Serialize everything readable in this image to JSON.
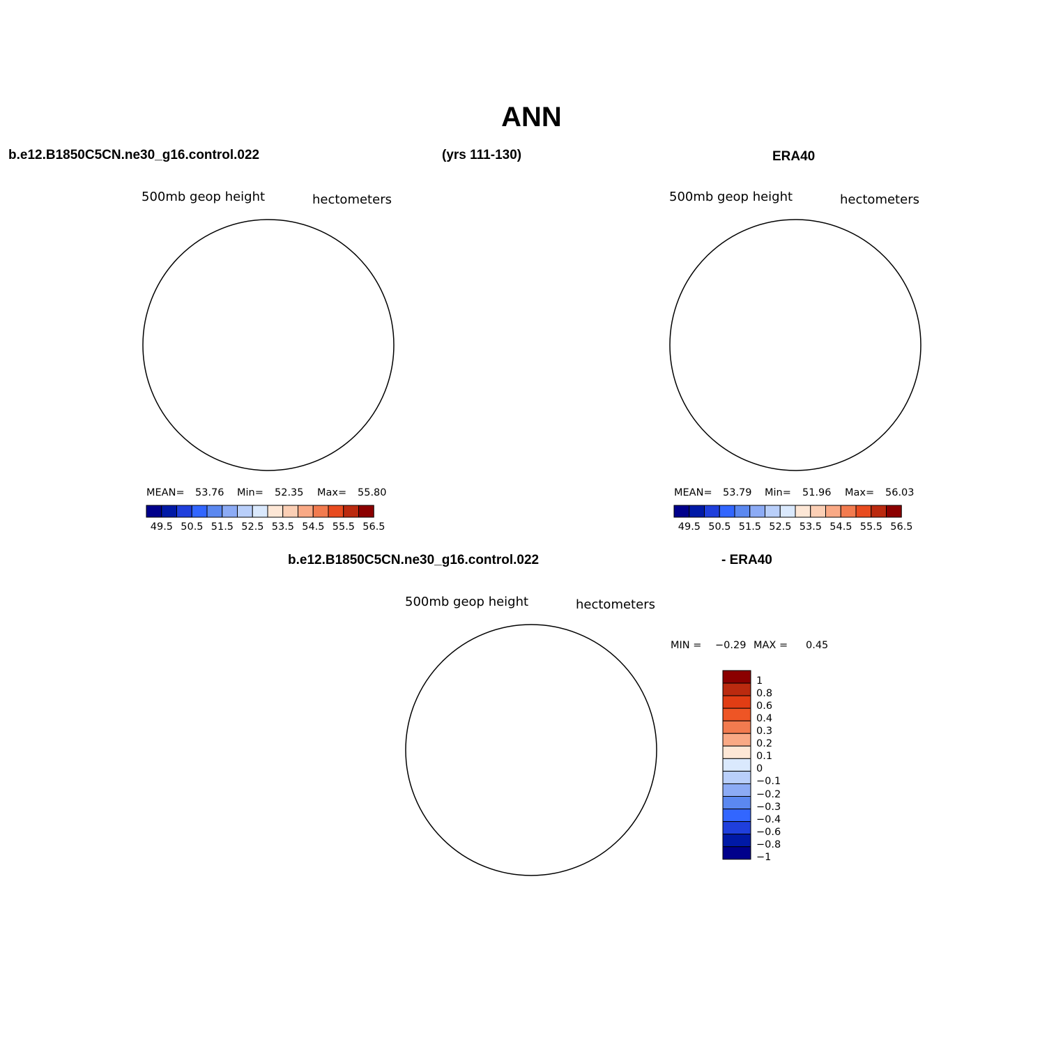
{
  "page_title": "ANN",
  "header": {
    "case_name": "b.e12.B1850C5CN.ne30_g16.control.022",
    "years": "(yrs 111-130)",
    "reference": "ERA40"
  },
  "diff_header": {
    "case_name": "b.e12.B1850C5CN.ne30_g16.control.022",
    "reference": "- ERA40"
  },
  "panels": {
    "model": {
      "left_label": "500mb  geop  height",
      "right_label": "hectometers",
      "mean_label": "MEAN=",
      "mean_value": "53.76",
      "min_label": "Min=",
      "min_value": "52.35",
      "max_label": "Max=",
      "max_value": "55.80"
    },
    "obs": {
      "left_label": "500mb  geop  height",
      "right_label": "hectometers",
      "mean_label": "MEAN=",
      "mean_value": "53.79",
      "min_label": "Min=",
      "min_value": "51.96",
      "max_label": "Max=",
      "max_value": "56.03"
    },
    "diff": {
      "left_label": "500mb  geop  height",
      "right_label": "hectometers",
      "min_label": "MIN =",
      "min_value": "−0.29",
      "max_label": "MAX =",
      "max_value": "0.45"
    }
  },
  "chart_data": [
    {
      "type": "heatmap",
      "name": "model 500mb geopotential height",
      "projection": "north polar stereographic",
      "units": "hectometers",
      "levels": [
        49.5,
        50,
        50.5,
        51,
        51.5,
        52,
        52.5,
        53,
        53.5,
        54,
        54.5,
        55,
        55.5,
        56,
        56.5
      ],
      "tick_labels": [
        "49.5",
        "50.5",
        "51.5",
        "52.5",
        "53.5",
        "54.5",
        "55.5",
        "56.5"
      ],
      "mean": 53.76,
      "min": 52.35,
      "max": 55.8
    },
    {
      "type": "heatmap",
      "name": "ERA40 500mb geopotential height",
      "projection": "north polar stereographic",
      "units": "hectometers",
      "levels": [
        49.5,
        50,
        50.5,
        51,
        51.5,
        52,
        52.5,
        53,
        53.5,
        54,
        54.5,
        55,
        55.5,
        56,
        56.5
      ],
      "tick_labels": [
        "49.5",
        "50.5",
        "51.5",
        "52.5",
        "53.5",
        "54.5",
        "55.5",
        "56.5"
      ],
      "mean": 53.79,
      "min": 51.96,
      "max": 56.03
    },
    {
      "type": "heatmap",
      "name": "model - ERA40 difference",
      "projection": "north polar stereographic",
      "units": "hectometers",
      "levels": [
        1,
        0.8,
        0.6,
        0.4,
        0.3,
        0.2,
        0.1,
        0,
        -0.1,
        -0.2,
        -0.3,
        -0.4,
        -0.6,
        -0.8,
        -1
      ],
      "tick_labels": [
        "1",
        "0.8",
        "0.6",
        "0.4",
        "0.3",
        "0.2",
        "0.1",
        "0",
        "−0.1",
        "−0.2",
        "−0.3",
        "−0.4",
        "−0.6",
        "−0.8",
        "−1"
      ],
      "min": -0.29,
      "max": 0.45
    }
  ],
  "colors": {
    "abs_scale": [
      "#00008b",
      "#0019a6",
      "#1f3fdc",
      "#3266ff",
      "#5b88f0",
      "#8cabf5",
      "#b9cffa",
      "#dae9fd",
      "#fde7d6",
      "#fbcfb5",
      "#f9a985",
      "#f27b4f",
      "#e84b1f",
      "#bb2a0f",
      "#8b0000"
    ],
    "diff_scale": [
      "#8b0000",
      "#bb2a0f",
      "#e13d14",
      "#ee5525",
      "#f27b4f",
      "#f9a985",
      "#fde7d6",
      "#dae9fd",
      "#b9cffa",
      "#8cabf5",
      "#5b88f0",
      "#3266ff",
      "#1f3fdc",
      "#0019a6",
      "#00008b"
    ]
  }
}
